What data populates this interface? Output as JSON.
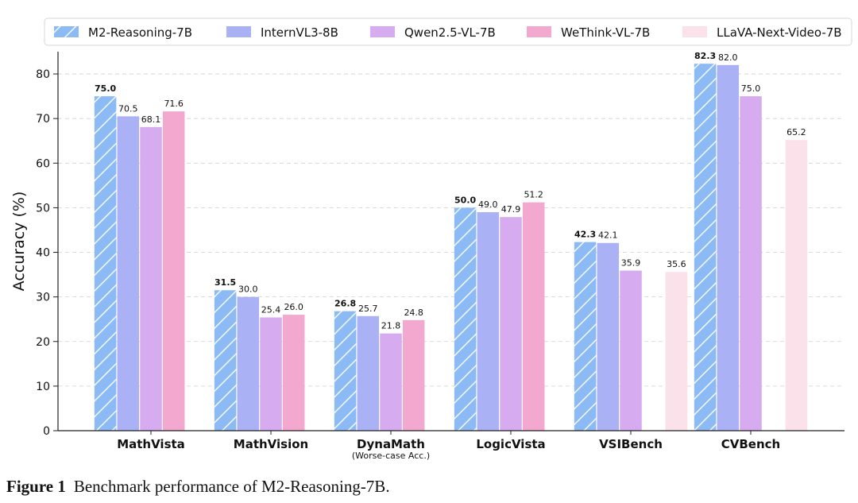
{
  "chart_data": {
    "type": "bar",
    "title": "",
    "xlabel": "",
    "ylabel": "Accuracy (%)",
    "ylim": [
      0,
      85
    ],
    "yticks": [
      0,
      10,
      20,
      30,
      40,
      50,
      60,
      70,
      80
    ],
    "grid": true,
    "legend_position": "top",
    "categories": [
      "MathVista",
      "MathVision",
      "DynaMath",
      "LogicVista",
      "VSIBench",
      "CVBench"
    ],
    "category_sublabels": [
      "",
      "",
      "(Worse-case Acc.)",
      "",
      "",
      ""
    ],
    "series": [
      {
        "name": "M2-Reasoning-7B",
        "color": "#8bbaf5",
        "hatch": true,
        "bold_labels": true,
        "values": [
          75.0,
          31.5,
          26.8,
          50.0,
          42.3,
          82.3
        ]
      },
      {
        "name": "InternVL3-8B",
        "color": "#aab2f5",
        "values": [
          70.5,
          30.0,
          25.7,
          49.0,
          42.1,
          82.0
        ]
      },
      {
        "name": "Qwen2.5-VL-7B",
        "color": "#d6abef",
        "values": [
          68.1,
          25.4,
          21.8,
          47.9,
          35.9,
          75.0
        ]
      },
      {
        "name": "WeThink-VL-7B",
        "color": "#f2a8cf",
        "values": [
          71.6,
          26.0,
          24.8,
          51.2,
          null,
          null
        ]
      },
      {
        "name": "LLaVA-Next-Video-7B",
        "color": "#fbe2ea",
        "values": [
          null,
          null,
          null,
          null,
          35.6,
          65.2
        ]
      }
    ]
  },
  "caption": {
    "label": "Figure 1",
    "text": "Benchmark performance of M2-Reasoning-7B."
  }
}
